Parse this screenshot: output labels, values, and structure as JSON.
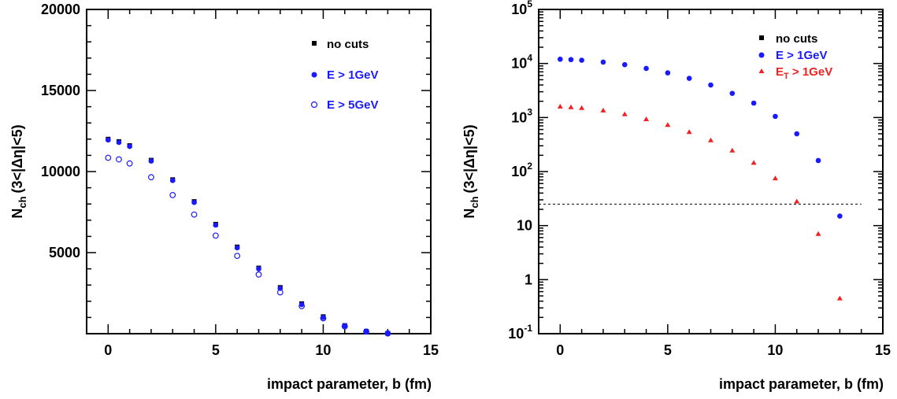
{
  "chart_data": [
    {
      "type": "scatter",
      "xlabel": "impact parameter, b (fm)",
      "ylabel_main": "N",
      "ylabel_sub": "ch",
      "ylabel_range": "(3<|Δη|<5)",
      "xlim": [
        -1,
        15
      ],
      "ylim": [
        0,
        20000
      ],
      "y_scale": "linear",
      "x_ticks": [
        0,
        5,
        10,
        15
      ],
      "y_ticks": [
        5000,
        10000,
        15000,
        20000
      ],
      "y_tick_labels": [
        "5000",
        "10000",
        "15000",
        "20000"
      ],
      "legend_position": "top-right",
      "series": [
        {
          "name": "no cuts",
          "marker": "square",
          "color": "#000000",
          "x": [
            0,
            0.5,
            1,
            2,
            3,
            4,
            5,
            6,
            7,
            8,
            9,
            10,
            11,
            12,
            13
          ],
          "values": [
            12000,
            11850,
            11600,
            10700,
            9500,
            8150,
            6750,
            5350,
            4050,
            2850,
            1850,
            1050,
            500,
            150,
            20
          ]
        },
        {
          "name": "E > 1GeV",
          "marker": "circle",
          "color": "#1a1aff",
          "x": [
            0,
            0.5,
            1,
            2,
            3,
            4,
            5,
            6,
            7,
            8,
            9,
            10,
            11,
            12,
            13
          ],
          "values": [
            11950,
            11800,
            11550,
            10650,
            9450,
            8100,
            6700,
            5300,
            4000,
            2800,
            1800,
            1000,
            480,
            140,
            15
          ]
        },
        {
          "name": "E > 5GeV",
          "marker": "open-circle",
          "color": "#1a1aff",
          "x": [
            0,
            0.5,
            1,
            2,
            3,
            4,
            5,
            6,
            7,
            8,
            9,
            10,
            11,
            12,
            13
          ],
          "values": [
            10850,
            10750,
            10500,
            9650,
            8550,
            7350,
            6050,
            4800,
            3650,
            2550,
            1700,
            950,
            450,
            130,
            15
          ]
        }
      ]
    },
    {
      "type": "scatter",
      "xlabel": "impact parameter, b (fm)",
      "ylabel_main": "N",
      "ylabel_sub": "ch",
      "ylabel_range": "(3<|Δη|<5)",
      "xlim": [
        -1,
        15
      ],
      "ylim": [
        0.1,
        100000
      ],
      "y_scale": "log",
      "x_ticks": [
        0,
        5,
        10,
        15
      ],
      "y_ticks": [
        0.1,
        1,
        10,
        100,
        1000,
        10000,
        100000
      ],
      "y_tick_base": "10",
      "y_tick_exps": [
        "-1",
        "",
        "",
        "2",
        "3",
        "4",
        "5"
      ],
      "y_tick_plain": [
        "",
        "1",
        "10",
        "",
        "",
        "",
        ""
      ],
      "legend_position": "top-right",
      "reference_line": {
        "y": 25,
        "x": [
          -1,
          14
        ],
        "style": "dashed"
      },
      "series": [
        {
          "name": "no cuts",
          "marker": "square",
          "color": "#000000",
          "x": [],
          "values": []
        },
        {
          "name": "E > 1GeV",
          "marker": "circle",
          "color": "#1a1aff",
          "x": [
            0,
            0.5,
            1,
            2,
            3,
            4,
            5,
            6,
            7,
            8,
            9,
            10,
            11,
            12,
            13
          ],
          "values": [
            12000,
            11800,
            11500,
            10600,
            9500,
            8100,
            6700,
            5300,
            4000,
            2800,
            1850,
            1050,
            500,
            160,
            15
          ]
        },
        {
          "name_main": "E",
          "name_sub": "T",
          "name_rest": " > 1GeV",
          "marker": "triangle",
          "color": "#ee2222",
          "x": [
            0,
            0.5,
            1,
            2,
            3,
            4,
            5,
            6,
            7,
            8,
            9,
            10,
            11,
            12,
            13
          ],
          "values": [
            1600,
            1550,
            1500,
            1350,
            1150,
            930,
            730,
            540,
            380,
            245,
            145,
            75,
            28,
            7,
            0.45
          ]
        }
      ]
    }
  ]
}
